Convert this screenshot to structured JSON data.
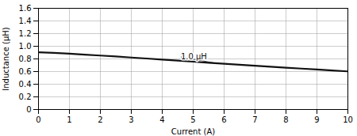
{
  "chart_data": {
    "type": "line",
    "xlabel": "Current (A)",
    "ylabel": "Inductance (μH)",
    "x": [
      0,
      0.5,
      1,
      1.5,
      2,
      2.5,
      3,
      3.5,
      4,
      4.5,
      5,
      5.5,
      6,
      6.5,
      7,
      7.5,
      8,
      8.5,
      9,
      9.5,
      10
    ],
    "values": [
      0.905,
      0.895,
      0.882,
      0.868,
      0.853,
      0.838,
      0.822,
      0.806,
      0.79,
      0.773,
      0.756,
      0.74,
      0.724,
      0.708,
      0.693,
      0.677,
      0.662,
      0.647,
      0.633,
      0.618,
      0.603
    ],
    "color": "#111111",
    "xlim": [
      0,
      10
    ],
    "ylim": [
      0,
      1.6
    ],
    "xticks": [
      0,
      1,
      2,
      3,
      4,
      5,
      6,
      7,
      8,
      9,
      10
    ],
    "yticks": [
      0,
      0.2,
      0.4,
      0.6,
      0.8,
      {
        "value": 1.0,
        "label": "1.0"
      },
      1.2,
      1.4,
      1.6
    ],
    "grid": true,
    "annotations": [
      {
        "text": "1.0 μH",
        "x": 4.6,
        "y": 0.83,
        "xy": [
          5.7,
          0.735
        ]
      }
    ]
  }
}
